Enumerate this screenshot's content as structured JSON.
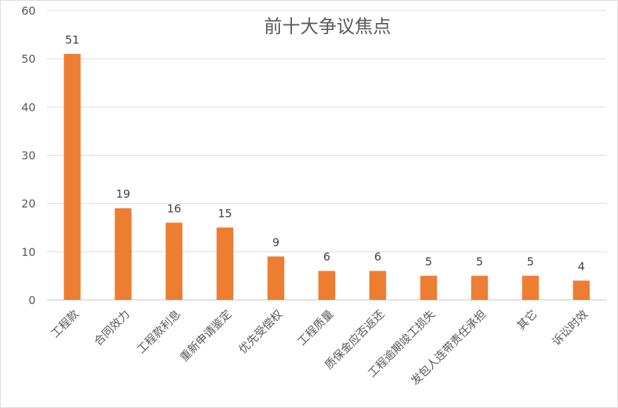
{
  "chart_data": {
    "type": "bar",
    "title": "前十大争议焦点",
    "xlabel": "",
    "ylabel": "",
    "categories": [
      "工程款",
      "合同效力",
      "工程款利息",
      "重新申请鉴定",
      "优先受偿权",
      "工程质量",
      "质保金应否返还",
      "工程逾期竣工损失",
      "发包人连带责任承担",
      "其它",
      "诉讼时效"
    ],
    "values": [
      51,
      19,
      16,
      15,
      9,
      6,
      6,
      5,
      5,
      5,
      4
    ],
    "ylim": [
      0,
      60
    ],
    "yticks": [
      0,
      10,
      20,
      30,
      40,
      50,
      60
    ],
    "grid": true,
    "legend": "none",
    "bar_color": "#ED7D31",
    "grid_color": "#D9D9D9",
    "text_color": "#595959"
  }
}
